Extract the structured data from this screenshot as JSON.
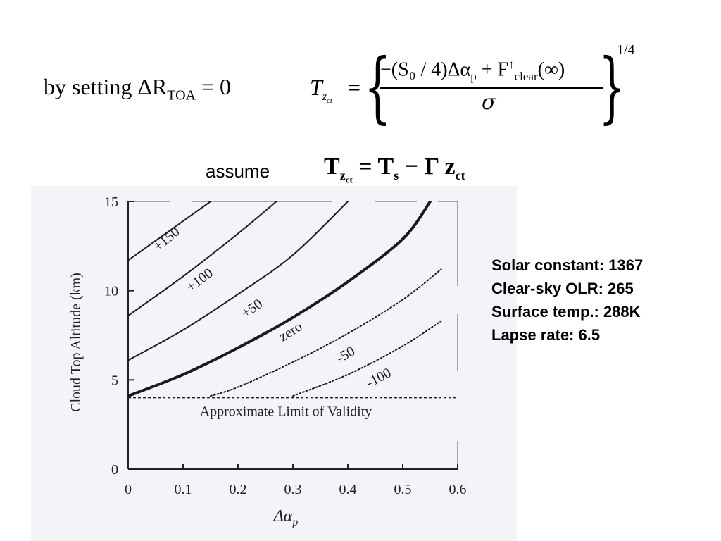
{
  "equation_block": {
    "condition_text": "by setting ΔR",
    "condition_sub": "TOA",
    "condition_rhs": " = 0",
    "lhs": "T",
    "lhs_sub": "z",
    "lhs_subsub": "ct",
    "equals": "=",
    "numerator": "−(S₀ / 4)Δα",
    "numerator_sub_p": "p",
    "numerator_plus": " + F",
    "numerator_sup": "↑",
    "numerator_sub": "clear",
    "numerator_tail": "(∞)",
    "denominator": "σ",
    "exponent": "1/4"
  },
  "assume_block": {
    "label": "assume",
    "formula_lhs": "T",
    "formula_lhs_sub": "z",
    "formula_lhs_subsub": "ct",
    "formula_rhs": " = T",
    "formula_rhs_sub": "s",
    "formula_tail": " − Γ z",
    "formula_tail_sub": "ct"
  },
  "parameters": [
    "Solar constant: 1367",
    "Clear-sky OLR: 265",
    "Surface temp.: 288K",
    "Lapse rate: 6.5"
  ],
  "chart_data": {
    "type": "line",
    "xlabel": "Δα",
    "xlabel_sub": "p",
    "ylabel": "Cloud Top Altitude (km)",
    "xlim": [
      0,
      0.6
    ],
    "ylim": [
      0,
      15
    ],
    "x_ticks": [
      "0",
      "0.1",
      "0.2",
      "0.3",
      "0.4",
      "0.5",
      "0.6"
    ],
    "y_ticks": [
      "0",
      "5",
      "10",
      "15"
    ],
    "grid": false,
    "series": [
      {
        "name": "+150",
        "style": "solid",
        "x": [
          0,
          0.05,
          0.1,
          0.15
        ],
        "y": [
          11.7,
          12.8,
          13.9,
          15
        ]
      },
      {
        "name": "+100",
        "style": "solid",
        "x": [
          0,
          0.1,
          0.2,
          0.27
        ],
        "y": [
          8.6,
          10.8,
          13.2,
          15
        ]
      },
      {
        "name": "+50",
        "style": "solid",
        "x": [
          0,
          0.1,
          0.2,
          0.3,
          0.4
        ],
        "y": [
          6.1,
          7.8,
          9.8,
          12.0,
          15
        ]
      },
      {
        "name": "zero",
        "style": "bold",
        "x": [
          0,
          0.1,
          0.2,
          0.3,
          0.4,
          0.5,
          0.55
        ],
        "y": [
          4.1,
          5.3,
          6.8,
          8.5,
          10.5,
          12.9,
          15
        ]
      },
      {
        "name": "-50",
        "style": "dotted",
        "x": [
          0.15,
          0.2,
          0.3,
          0.4,
          0.5,
          0.57
        ],
        "y": [
          4.1,
          4.6,
          6.0,
          7.6,
          9.5,
          11.2
        ]
      },
      {
        "name": "-100",
        "style": "dotted",
        "x": [
          0.3,
          0.4,
          0.5,
          0.57
        ],
        "y": [
          4.1,
          5.3,
          6.9,
          8.3
        ]
      }
    ],
    "threshold": {
      "label": "Approximate Limit of Validity",
      "y": 4.0,
      "style": "dashed"
    }
  }
}
